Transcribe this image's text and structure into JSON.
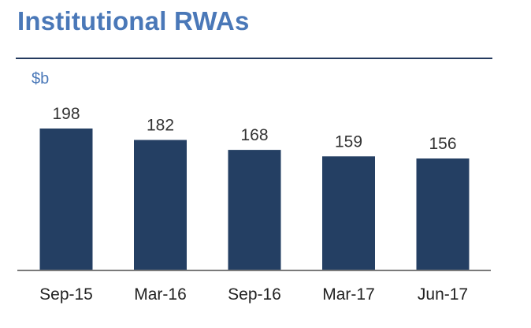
{
  "header": {
    "title": "Institutional RWAs"
  },
  "chart_data": {
    "type": "bar",
    "title": "Institutional RWAs",
    "unit_label": "$b",
    "categories": [
      "Sep-15",
      "Mar-16",
      "Sep-16",
      "Mar-17",
      "Jun-17"
    ],
    "values": [
      198,
      182,
      168,
      159,
      156
    ],
    "data_labels": [
      "198",
      "182",
      "168",
      "159",
      "156"
    ],
    "ylim": [
      0,
      198
    ],
    "grid": false,
    "legend": "none",
    "bar_color": "#243f63"
  }
}
